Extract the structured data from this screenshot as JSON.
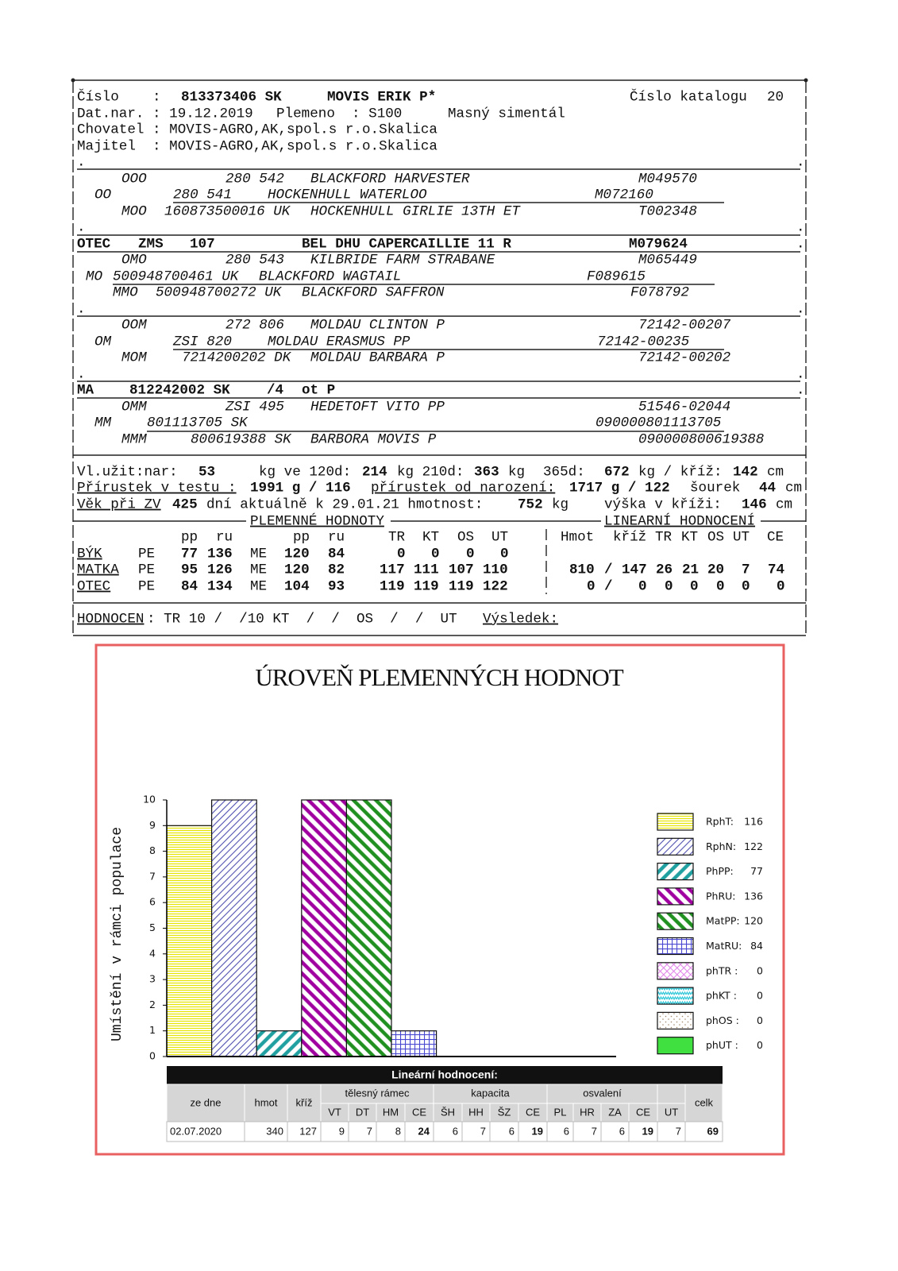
{
  "document": {
    "lines": [
      [
        "Číslo    :",
        "813373406 SK",
        "MOVIS ERIK P*",
        "Číslo katalogu",
        "20"
      ],
      [
        "Dat.nar. : 19.12.2019",
        "Plemeno  : S100",
        "Masný simentál"
      ],
      [
        "Chovatel : MOVIS-AGRO,AK,spol.s r.o.Skalica"
      ],
      [
        "Majitel  : MOVIS-AGRO,AK,spol.s r.o.Skalica"
      ],
      [
        ".",
        "."
      ],
      [
        "OOO",
        "280 542",
        "BLACKFORD HARVESTER",
        "M049570"
      ],
      [
        "OO",
        "280 541",
        "HOCKENHULL WATERLOO",
        "M072160"
      ],
      [
        "MOO",
        "160873500016 UK",
        "HOCKENHULL GIRLIE 13TH ET",
        "T002348"
      ],
      [
        ".",
        "."
      ],
      [
        "OTEC",
        "ZMS",
        "107",
        "BEL DHU CAPERCAILLIE 11 R",
        "M079624",
        "."
      ],
      [
        "OMO",
        "280 543",
        "KILBRIDE FARM STRABANE",
        "M065449"
      ],
      [
        "MO",
        "500948700461 UK",
        "BLACKFORD WAGTAIL",
        "F089615"
      ],
      [
        "MMO",
        "500948700272 UK",
        "BLACKFORD SAFFRON",
        "F078792"
      ],
      [
        ".",
        "."
      ],
      [
        "OOM",
        "272 806",
        "MOLDAU CLINTON P",
        "72142-00207"
      ],
      [
        "OM",
        "ZSI 820",
        "MOLDAU ERASMUS PP",
        "72142-00235"
      ],
      [
        "MOM",
        "7214200202 DK",
        "MOLDAU BARBARA P",
        "72142-00202"
      ],
      [
        ".",
        "."
      ],
      [
        "MA",
        "812242002 SK",
        "/4",
        "ot P",
        "."
      ],
      [
        "OMM",
        "ZSI 495",
        "HEDETOFT VITO PP",
        "51546-02044"
      ],
      [
        "MM",
        "801113705 SK",
        "090000801113705"
      ],
      [
        "MMM",
        "800619388 SK",
        "BARBORA MOVIS P",
        "090000800619388"
      ],
      [
        "Vl.užit:nar:",
        "53",
        "kg ve 120d:",
        "214",
        "kg 210d:",
        "363",
        "kg",
        "365d:",
        "672",
        "kg / kříž:",
        "142",
        "cm"
      ],
      [
        "Přírustek v testu :",
        "1991 g / 116",
        "přírustek od narození:",
        "1717 g / 122",
        "šourek",
        "44",
        "cm"
      ],
      [
        "Věk při ZV",
        "425",
        "dní aktuálně k 29.01.21 hmotnost:",
        "752",
        "kg",
        "výška v kříži:",
        "146",
        "cm"
      ],
      [
        "PLEMENNÉ HODNOTY",
        "LINEARNÍ HODNOCENÍ"
      ],
      [
        "pp",
        "ru",
        "pp",
        "ru",
        "TR",
        "KT",
        "OS",
        "UT",
        "Hmot",
        "kříž",
        "TR",
        "KT",
        "OS",
        "UT",
        "CE"
      ],
      [
        "BÝK",
        "PE",
        "77",
        "136",
        "ME",
        "120",
        "84",
        "0",
        "0",
        "0",
        "0"
      ],
      [
        "MATKA",
        "PE",
        "95",
        "126",
        "ME",
        "120",
        "82",
        "117",
        "111",
        "107",
        "110",
        "810",
        "/",
        "147",
        "26",
        "21",
        "20",
        "7",
        "74"
      ],
      [
        "OTEC",
        "PE",
        "84",
        "134",
        "ME",
        "104",
        "93",
        "119",
        "119",
        "119",
        "122",
        "0",
        "/",
        "0",
        "0",
        "0",
        "0",
        "0",
        "0"
      ],
      [
        "HODNOCEN",
        ": TR 10 /  /10 KT  /  /  OS  /  /  UT",
        "Výsledek:"
      ]
    ]
  },
  "chart_data": {
    "type": "bar",
    "title": "ÚROVEŇ PLEMENNÝCH HODNOT",
    "y_label": "Umístění v rámci populace",
    "ylim": [
      0,
      10
    ],
    "yticks": [
      0,
      1,
      2,
      3,
      4,
      5,
      6,
      7,
      8,
      9,
      10
    ],
    "series": [
      {
        "name": "RphT:",
        "legend_value": 116,
        "color": "#e6e600",
        "pattern": "horizontal",
        "value": 9
      },
      {
        "name": "RphN:",
        "legend_value": 122,
        "color": "#5050b0",
        "pattern": "diag-up",
        "value": 10
      },
      {
        "name": "PhPP:",
        "legend_value": 77,
        "color": "#20a0a0",
        "pattern": "diag-up-thick",
        "value": 1
      },
      {
        "name": "PhRU:",
        "legend_value": 136,
        "color": "#a000a0",
        "pattern": "diag-down-thick",
        "value": 10
      },
      {
        "name": "MatPP:",
        "legend_value": 120,
        "color": "#209020",
        "pattern": "diag-down-thick",
        "value": 10
      },
      {
        "name": "MatRU:",
        "legend_value": 84,
        "color": "#4848d0",
        "pattern": "grid",
        "value": 1
      },
      {
        "name": "phTR :",
        "legend_value": 0,
        "color": "#e080e8",
        "pattern": "cross",
        "value": 0
      },
      {
        "name": "phKT :",
        "legend_value": 0,
        "color": "#30c8d8",
        "pattern": "wave",
        "value": 0
      },
      {
        "name": "phOS :",
        "legend_value": 0,
        "color": "#a08868",
        "pattern": "dots",
        "value": 0
      },
      {
        "name": "phUT :",
        "legend_value": 0,
        "color": "#40e040",
        "pattern": "solid",
        "value": 0
      }
    ]
  },
  "table": {
    "title": "Lineární hodnocení:",
    "groups": [
      "tělesný rámec",
      "kapacita",
      "osvalení"
    ],
    "headers": [
      "ze dne",
      "hmot",
      "kříž",
      "VT",
      "DT",
      "HM",
      "CE",
      "ŠH",
      "HH",
      "ŠZ",
      "CE",
      "PL",
      "HR",
      "ZA",
      "CE",
      "UT",
      "celk"
    ],
    "rows": [
      [
        "02.07.2020",
        340,
        127,
        9,
        7,
        8,
        24,
        6,
        7,
        6,
        19,
        6,
        7,
        6,
        19,
        7,
        69
      ]
    ]
  }
}
